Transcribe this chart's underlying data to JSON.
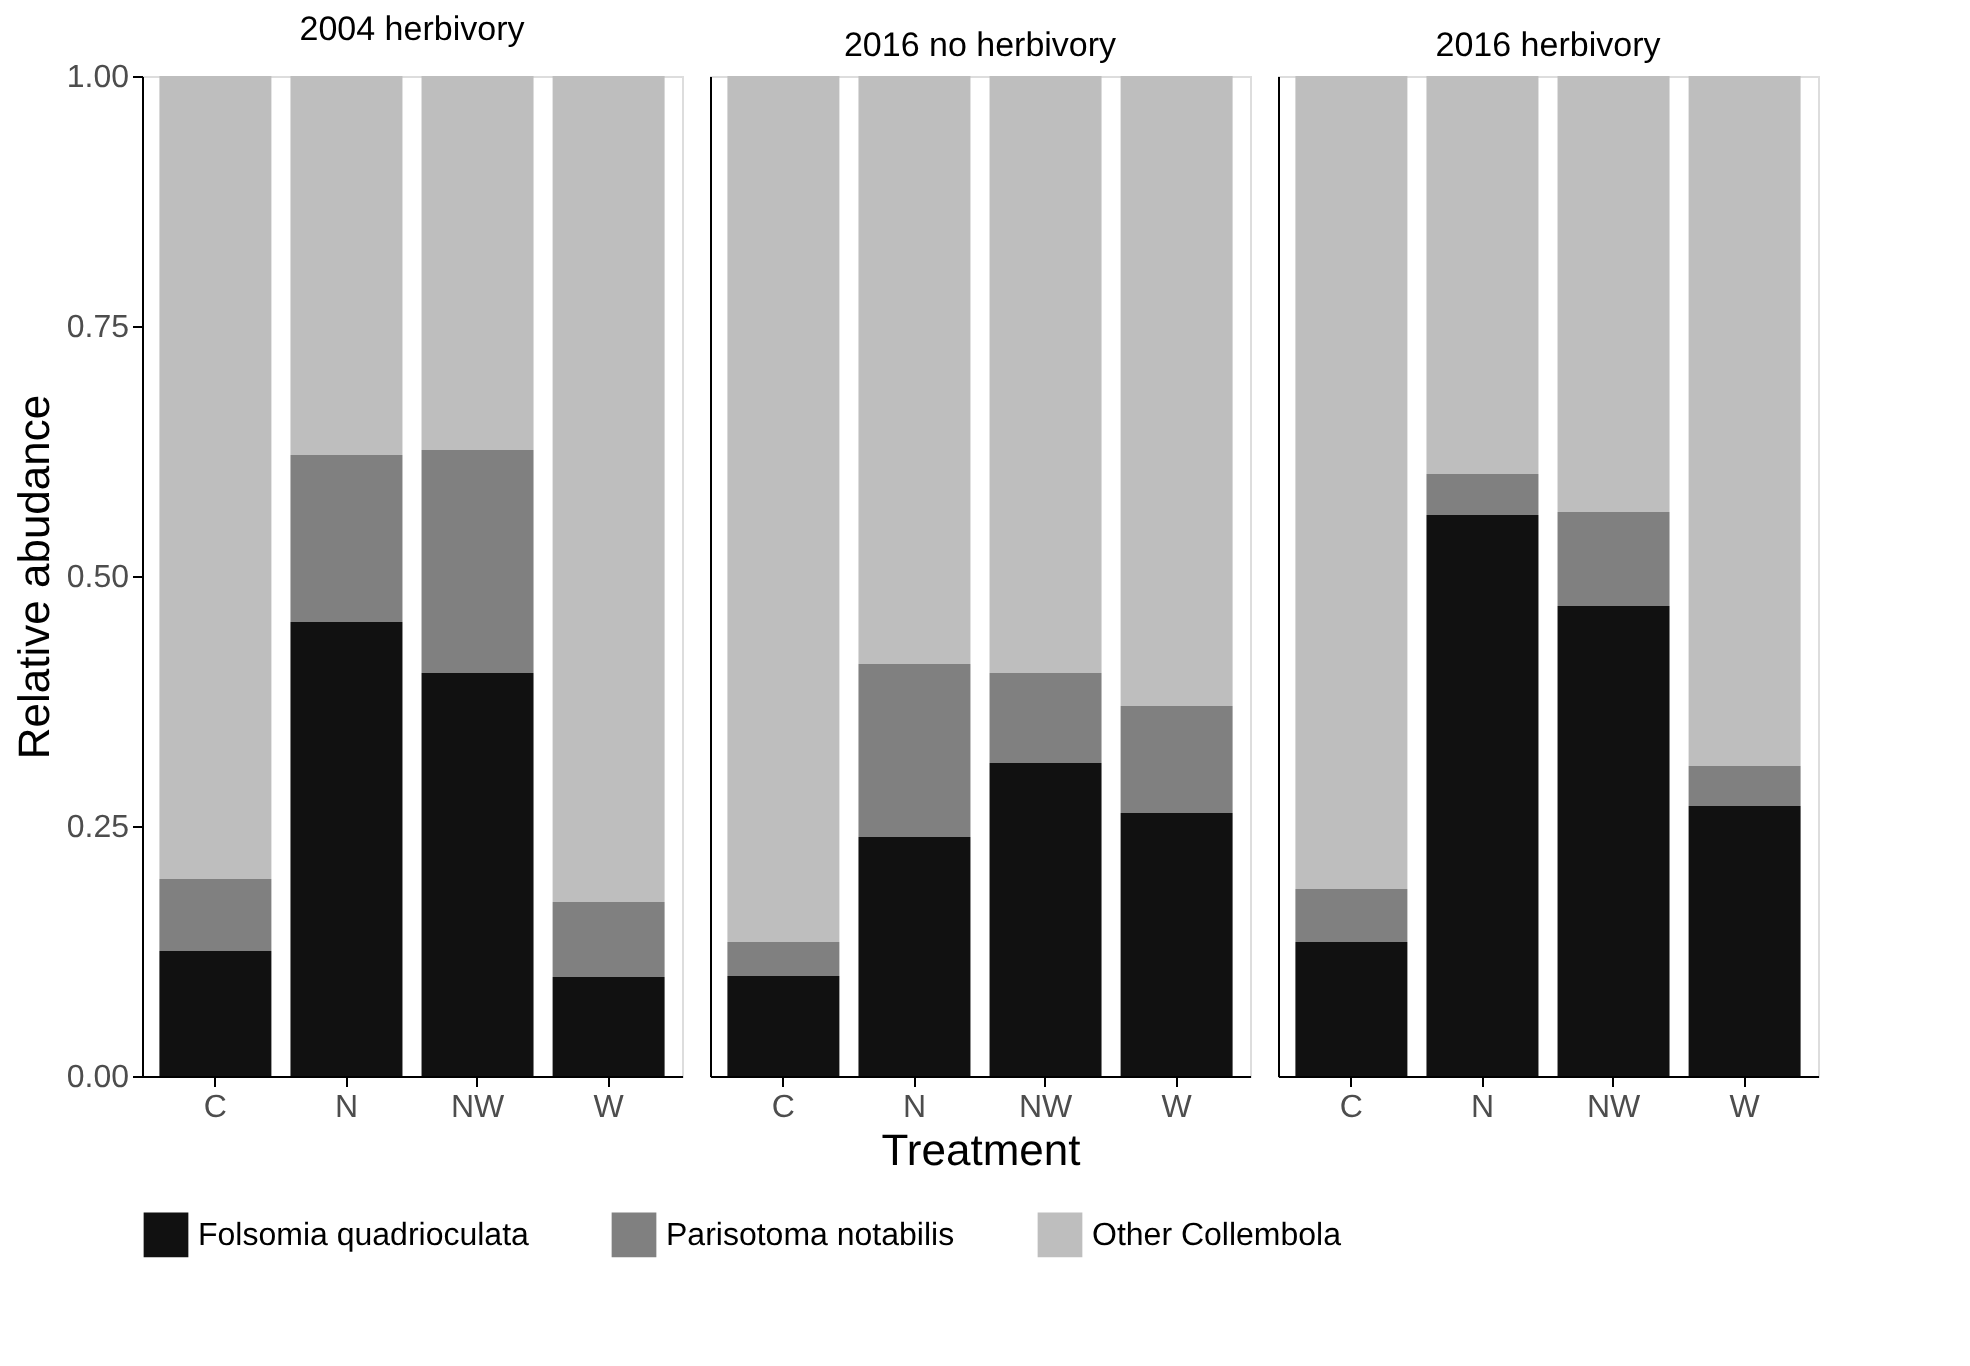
{
  "chart_data": [
    {
      "type": "bar",
      "title": "2004 herbivory",
      "ylabel": "Relative abudance",
      "categories": [
        "C",
        "N",
        "NW",
        "W"
      ],
      "stacked": true,
      "ylim": [
        0,
        1
      ],
      "yticks": [
        {
          "value": 0,
          "label": "0.00"
        },
        {
          "value": 0.25,
          "label": "0.25"
        },
        {
          "value": 0.5,
          "label": "0.50"
        },
        {
          "value": 0.75,
          "label": "0.75"
        },
        {
          "value": 1,
          "label": "1.00"
        }
      ],
      "grid": false,
      "legend": "bottom",
      "series": [
        {
          "name": "Folsomia quadrioculata",
          "color": "#111111",
          "values": [
            0.125,
            0.454,
            0.403,
            0.099
          ]
        },
        {
          "name": "Parisotoma notabilis",
          "color": "#808080",
          "values": [
            0.072,
            0.167,
            0.223,
            0.075
          ]
        },
        {
          "name": "Other Collembola",
          "color": "#bebebe",
          "values": [
            0.803,
            0.379,
            0.374,
            0.826
          ]
        }
      ]
    },
    {
      "type": "bar",
      "title": "2016 no herbivory",
      "xlabel": "Treatment",
      "categories": [
        "C",
        "N",
        "NW",
        "W"
      ],
      "stacked": true,
      "ylim": [
        0,
        1
      ],
      "tick_labels": "x",
      "grid": false,
      "legend": "bottom",
      "series": [
        {
          "name": "Folsomia quadrioculata",
          "color": "#111111",
          "values": [
            0.1,
            0.239,
            0.313,
            0.263
          ]
        },
        {
          "name": "Parisotoma notabilis",
          "color": "#808080",
          "values": [
            0.034,
            0.173,
            0.09,
            0.107
          ]
        },
        {
          "name": "Other Collembola",
          "color": "#bebebe",
          "values": [
            0.866,
            0.588,
            0.597,
            0.63
          ]
        }
      ]
    },
    {
      "type": "bar",
      "title": "2016 herbivory",
      "categories": [
        "C",
        "N",
        "NW",
        "W"
      ],
      "stacked": true,
      "ylim": [
        0,
        1
      ],
      "tick_labels": "x",
      "grid": false,
      "legend": "bottom",
      "series": [
        {
          "name": "Folsomia quadrioculata",
          "color": "#111111",
          "values": [
            0.134,
            0.561,
            0.47,
            0.27
          ]
        },
        {
          "name": "Parisotoma notabilis",
          "color": "#808080",
          "values": [
            0.053,
            0.041,
            0.094,
            0.04
          ]
        },
        {
          "name": "Other Collembola",
          "color": "#bebebe",
          "values": [
            0.813,
            0.398,
            0.436,
            0.69
          ]
        }
      ]
    }
  ]
}
